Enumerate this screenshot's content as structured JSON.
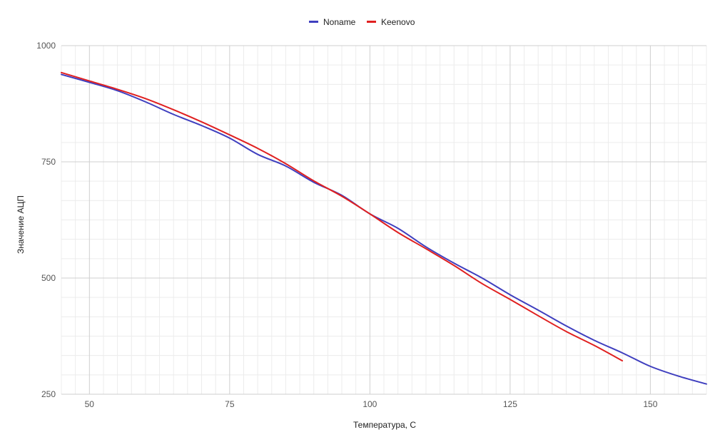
{
  "chart_data": {
    "type": "line",
    "xlabel": "Температура, С",
    "ylabel": "Значение АЦП",
    "xlim": [
      45,
      160
    ],
    "ylim": [
      250,
      1000
    ],
    "x_major_ticks": [
      50,
      75,
      100,
      125,
      150
    ],
    "x_minor_step": 2.5,
    "y_major_ticks": [
      250,
      500,
      750,
      1000
    ],
    "y_minor_step": 41.667,
    "grid": true,
    "legend_position": "top-center",
    "series": [
      {
        "name": "Noname",
        "color": "#3f3fbf",
        "x": [
          45,
          50,
          55,
          60,
          65,
          70,
          75,
          80,
          85,
          90,
          95,
          100,
          105,
          110,
          115,
          120,
          125,
          130,
          135,
          140,
          145,
          150,
          155,
          160
        ],
        "y": [
          938,
          921,
          903,
          879,
          852,
          828,
          801,
          766,
          741,
          706,
          678,
          638,
          607,
          567,
          532,
          500,
          464,
          431,
          397,
          366,
          339,
          310,
          289,
          272
        ]
      },
      {
        "name": "Keenovo",
        "color": "#e02020",
        "x": [
          45,
          50,
          55,
          60,
          65,
          70,
          75,
          80,
          85,
          90,
          95,
          100,
          105,
          110,
          115,
          120,
          125,
          130,
          135,
          140,
          145
        ],
        "y": [
          942,
          924,
          906,
          886,
          862,
          836,
          808,
          779,
          746,
          709,
          676,
          638,
          598,
          563,
          527,
          488,
          454,
          419,
          385,
          355,
          322
        ]
      }
    ]
  }
}
